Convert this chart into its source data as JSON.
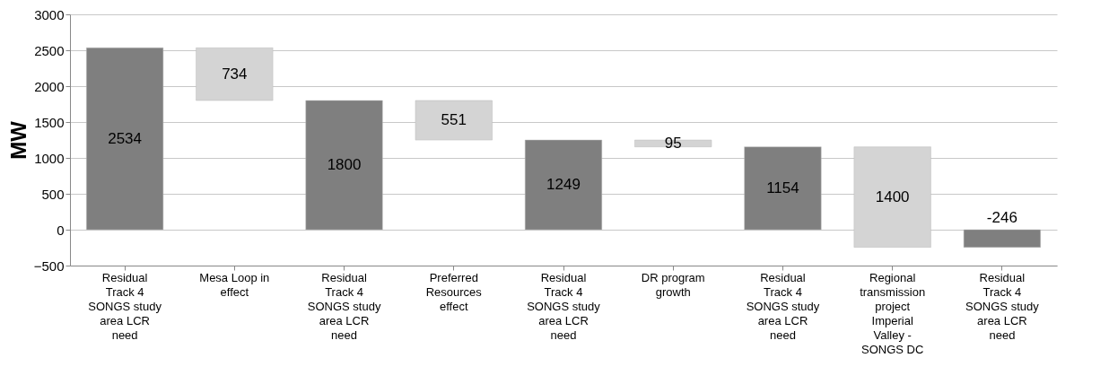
{
  "chart_data": {
    "type": "bar",
    "ylabel": "MW",
    "categories": [
      "Residual Track 4 SONGS study area LCR need",
      "Mesa Loop in effect",
      "Residual Track 4 SONGS study area LCR need",
      "Preferred Resources effect",
      "Residual Track 4 SONGS study area LCR need",
      "DR program growth",
      "Residual Track 4 SONGS study area LCR need",
      "Regional transmission project Imperial Valley - SONGS DC",
      "Residual Track 4 SONGS study area LCR need"
    ],
    "values": [
      2534,
      734,
      1800,
      551,
      1249,
      95,
      1154,
      1400,
      -246
    ],
    "base": [
      0,
      1800,
      0,
      1249,
      0,
      1154,
      0,
      -246,
      0
    ],
    "colors": [
      "#7f7f7f",
      "#d4d4d4",
      "#7f7f7f",
      "#d4d4d4",
      "#7f7f7f",
      "#d4d4d4",
      "#7f7f7f",
      "#d4d4d4",
      "#7f7f7f"
    ],
    "ylim": [
      -500,
      3000
    ],
    "yticks": [
      -500,
      0,
      500,
      1000,
      1500,
      2000,
      2500,
      3000
    ],
    "grid": "y",
    "legend": false,
    "data_labels": true
  }
}
